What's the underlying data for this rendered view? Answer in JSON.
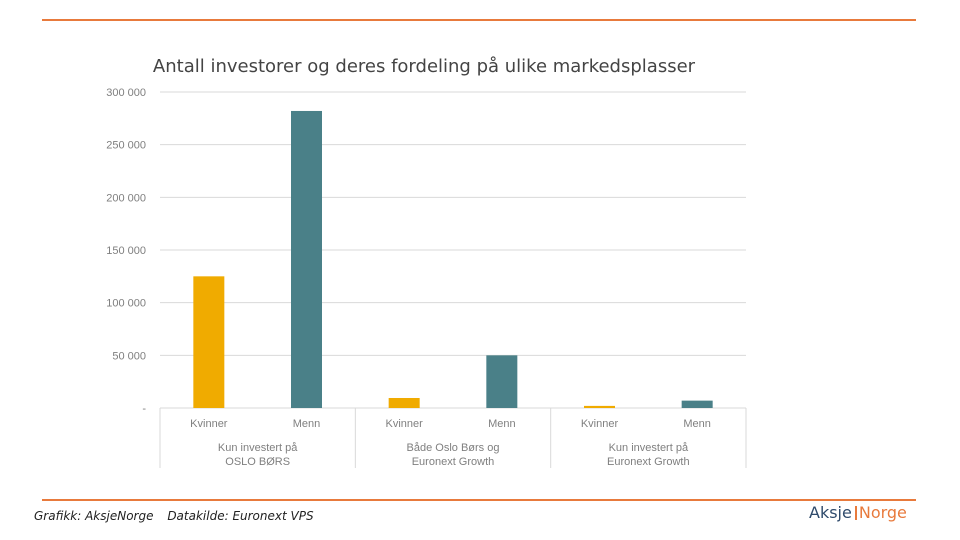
{
  "chart_data": {
    "type": "bar",
    "title": "Antall investorer og deres fordeling på ulike markedsplasser",
    "y_ticks": [
      "300 000",
      "250 000",
      "200 000",
      "150 000",
      "100 000",
      "50 000",
      "-"
    ],
    "ylim": [
      0,
      300000
    ],
    "grid": true,
    "groups": [
      {
        "label_lines": [
          "Kun investert på",
          "OSLO BØRS"
        ],
        "bars": [
          {
            "category": "Kvinner",
            "value": 125000,
            "color": "#f0ab00"
          },
          {
            "category": "Menn",
            "value": 282000,
            "color": "#4a8088"
          }
        ]
      },
      {
        "label_lines": [
          "Både Oslo Børs og",
          "Euronext Growth"
        ],
        "bars": [
          {
            "category": "Kvinner",
            "value": 9500,
            "color": "#f0ab00"
          },
          {
            "category": "Menn",
            "value": 50000,
            "color": "#4a8088"
          }
        ]
      },
      {
        "label_lines": [
          "Kun investert på",
          "Euronext Growth"
        ],
        "bars": [
          {
            "category": "Kvinner",
            "value": 2000,
            "color": "#f0ab00"
          },
          {
            "category": "Menn",
            "value": 7000,
            "color": "#4a8088"
          }
        ]
      }
    ]
  },
  "footer": {
    "credit": "Grafikk: AksjeNorge",
    "source": "Datakilde: Euronext VPS"
  },
  "logo": {
    "part1": "Aksje",
    "part2": "Norge"
  },
  "colors": {
    "accent": "#e87a3c"
  }
}
